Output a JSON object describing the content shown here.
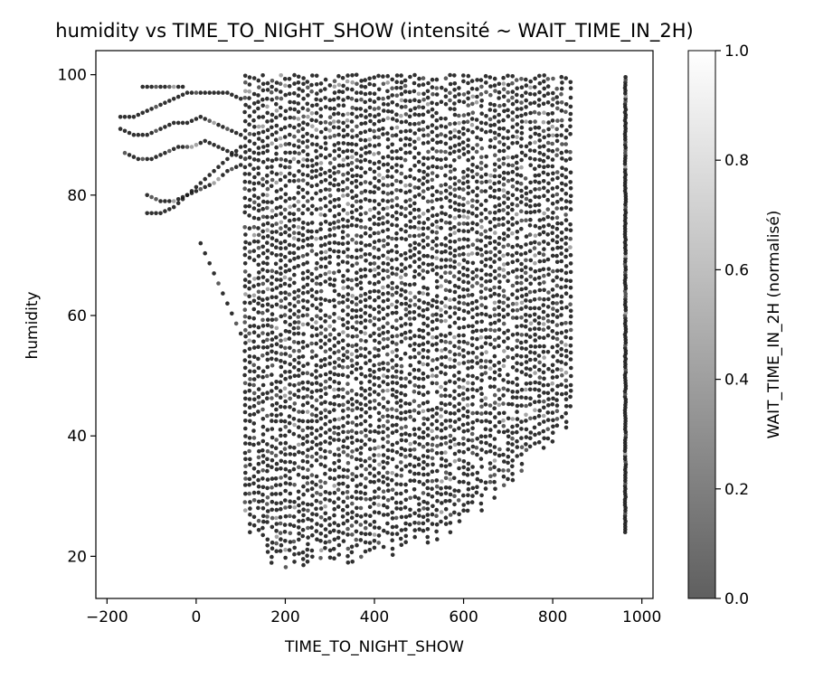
{
  "chart_data": {
    "type": "scatter",
    "title": "humidity vs TIME_TO_NIGHT_SHOW (intensité ~ WAIT_TIME_IN_2H)",
    "xlabel": "TIME_TO_NIGHT_SHOW",
    "ylabel": "humidity",
    "xlim": [
      -225,
      1025
    ],
    "ylim": [
      13,
      104
    ],
    "xticks": [
      -200,
      0,
      200,
      400,
      600,
      800,
      1000
    ],
    "xtick_labels": [
      "−200",
      "0",
      "200",
      "400",
      "600",
      "800",
      "1000"
    ],
    "yticks": [
      20,
      40,
      60,
      80,
      100
    ],
    "ytick_labels": [
      "20",
      "40",
      "60",
      "80",
      "100"
    ],
    "grid": false,
    "colorbar": {
      "label": "WAIT_TIME_IN_2H (normalisé)",
      "range": [
        0,
        1
      ],
      "ticks": [
        0.0,
        0.2,
        0.4,
        0.6,
        0.8,
        1.0
      ],
      "tick_labels": [
        "0.0",
        "0.2",
        "0.4",
        "0.6",
        "0.8",
        "1.0"
      ],
      "color_low": "#5f5f5f",
      "color_high": "#ffffff"
    },
    "point_color_dark": "#1a1a1a",
    "point_color_light": "#9a9a9a",
    "main_block": {
      "x_range": [
        110,
        845
      ],
      "x_step": 10,
      "y_min_curve": [
        [
          110,
          25
        ],
        [
          170,
          17
        ],
        [
          250,
          18
        ],
        [
          350,
          19
        ],
        [
          450,
          20
        ],
        [
          550,
          22
        ],
        [
          650,
          28
        ],
        [
          750,
          35
        ],
        [
          845,
          42
        ]
      ],
      "y_max": 100
    },
    "vertical_band": {
      "x": 963,
      "y_range": [
        24,
        100
      ]
    },
    "left_trails": [
      {
        "x": [
          -170,
          -140,
          -110,
          -80,
          -50,
          -20,
          10,
          40,
          70,
          100
        ],
        "y": [
          93,
          93,
          94,
          95,
          96,
          97,
          97,
          97,
          97,
          96
        ]
      },
      {
        "x": [
          -170,
          -140,
          -110,
          -80,
          -50,
          -20,
          10,
          40,
          70,
          100
        ],
        "y": [
          91,
          90,
          90,
          91,
          92,
          92,
          93,
          92,
          91,
          90
        ]
      },
      {
        "x": [
          -160,
          -130,
          -100,
          -70,
          -40,
          -10,
          20,
          50,
          80,
          110
        ],
        "y": [
          87,
          86,
          86,
          87,
          88,
          88,
          89,
          88,
          87,
          86
        ]
      },
      {
        "x": [
          -110,
          -80,
          -50,
          -20,
          10,
          40,
          70,
          100
        ],
        "y": [
          80,
          79,
          79,
          80,
          81,
          82,
          84,
          85
        ]
      },
      {
        "x": [
          -110,
          -80,
          -50,
          -20,
          10,
          40,
          70,
          100
        ],
        "y": [
          77,
          77,
          78,
          80,
          82,
          84,
          86,
          88
        ]
      },
      {
        "x": [
          -120,
          -90,
          -60,
          -30
        ],
        "y": [
          98,
          98,
          98,
          98
        ]
      },
      {
        "x": [
          10,
          40,
          70,
          100
        ],
        "y": [
          72,
          67,
          62,
          57
        ]
      }
    ]
  }
}
